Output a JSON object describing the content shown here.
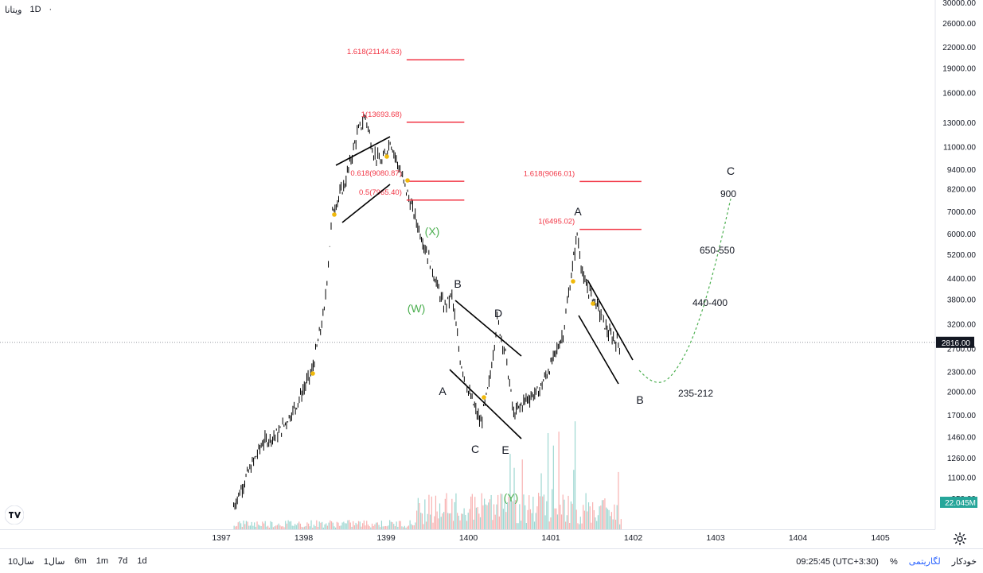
{
  "header": {
    "symbol": "ویتانا",
    "interval": "1D"
  },
  "chart_data": {
    "type": "candlestick",
    "y_scale": "log",
    "ylim": [
      900,
      30000
    ],
    "y_ticks": [
      "30000.00",
      "26000.00",
      "22000.00",
      "19000.00",
      "16000.00",
      "13000.00",
      "11000.00",
      "9400.00",
      "8200.00",
      "7000.00",
      "6000.00",
      "5200.00",
      "4400.00",
      "3800.00",
      "3200.00",
      "2700.00",
      "2300.00",
      "2000.00",
      "1700.00",
      "1460.00",
      "1260.00",
      "1100.00",
      "950.00"
    ],
    "x_ticks": [
      "1397",
      "1398",
      "1399",
      "1400",
      "1401",
      "1402",
      "1403",
      "1404",
      "1405"
    ],
    "last_price": "2816.00",
    "volume_label": "22.045M",
    "price_path": [
      [
        "1397.15",
        900
      ],
      [
        "1397.3",
        1100
      ],
      [
        "1397.5",
        1400
      ],
      [
        "1397.7",
        1500
      ],
      [
        "1397.9",
        1800
      ],
      [
        "1398.1",
        2300
      ],
      [
        "1398.25",
        3500
      ],
      [
        "1398.35",
        7000
      ],
      [
        "1398.5",
        8500
      ],
      [
        "1398.65",
        12000
      ],
      [
        "1398.75",
        13600
      ],
      [
        "1398.85",
        10500
      ],
      [
        "1398.95",
        9800
      ],
      [
        "1399.05",
        11500
      ],
      [
        "1399.2",
        8800
      ],
      [
        "1399.4",
        6200
      ],
      [
        "1399.55",
        4800
      ],
      [
        "1399.7",
        3600
      ],
      [
        "1399.8",
        3900
      ],
      [
        "1399.9",
        2500
      ],
      [
        "1400.0",
        2000
      ],
      [
        "1400.15",
        1600
      ],
      [
        "1400.25",
        2100
      ],
      [
        "1400.35",
        3300
      ],
      [
        "1400.45",
        2600
      ],
      [
        "1400.55",
        1700
      ],
      [
        "1400.7",
        1900
      ],
      [
        "1400.85",
        2000
      ],
      [
        "1401.0",
        2400
      ],
      [
        "1401.15",
        3000
      ],
      [
        "1401.25",
        4500
      ],
      [
        "1401.32",
        6000
      ],
      [
        "1401.4",
        4300
      ],
      [
        "1401.55",
        3700
      ],
      [
        "1401.7",
        3000
      ],
      [
        "1401.85",
        2750
      ]
    ],
    "fib_levels": [
      {
        "label": "1.618(21144.63)"
      },
      {
        "label": "1(13693.68)"
      },
      {
        "label": "0.618(9080.87)"
      },
      {
        "label": "0.5(7965.40)"
      },
      {
        "label": "1.618(9066.01)"
      },
      {
        "label": "1(6495.02)"
      }
    ],
    "wave_labels": [
      "(X)",
      "(W)",
      "(Y)",
      "A",
      "B",
      "C",
      "D",
      "E",
      "A",
      "B",
      "C"
    ],
    "targets": [
      "900",
      "650-550",
      "440-400",
      "235-212"
    ]
  },
  "bottom_bar": {
    "ranges": [
      "1d",
      "7d",
      "1m",
      "6m",
      "1سال",
      "10سال"
    ],
    "time": "09:25:45 (UTC+3:30)",
    "percent": "%",
    "log": "لگاریتمی",
    "auto": "خودکار"
  },
  "colors": {
    "fib": "#f23645",
    "projection": "#4caf50",
    "volume_up": "#26a69a",
    "volume_down": "#ef5350",
    "price_tag": "#131722",
    "volume_tag": "#26a69a"
  }
}
